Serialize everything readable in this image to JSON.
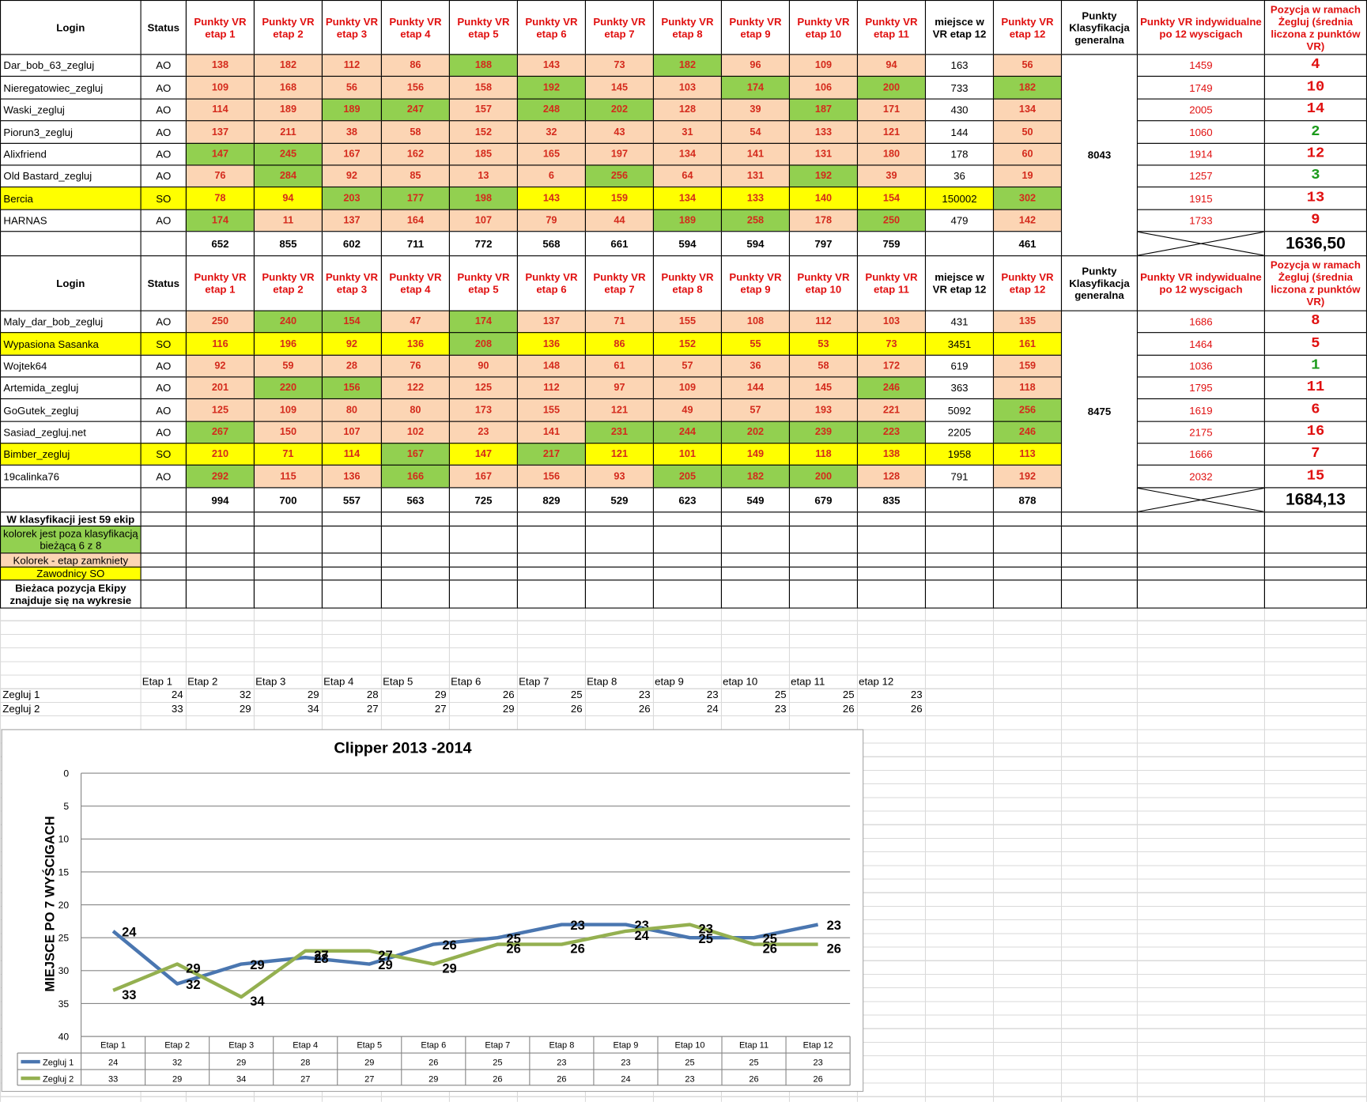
{
  "table1": {
    "headers": [
      "Login",
      "Status",
      "Punkty VR etap 1",
      "Punkty VR etap 2",
      "Punkty VR etap 3",
      "Punkty VR etap 4",
      "Punkty VR etap 5",
      "Punkty VR etap 6",
      "Punkty VR etap 7",
      "Punkty VR etap 8",
      "Punkty VR etap 9",
      "Punkty VR etap 10",
      "Punkty VR etap 11",
      "miejsce w VR etap 12",
      "Punkty VR etap 12",
      "Punkty Klasyfikacja generalna",
      "Punkty VR indywidualne po 12 wyscigach",
      "Pozycja w ramach Żegluj (średnia liczona z punktów VR)"
    ],
    "rows": [
      {
        "login": "Dar_bob_63_zegluj",
        "status": "AO",
        "points": [
          138,
          182,
          112,
          86,
          188,
          143,
          73,
          182,
          96,
          109,
          94
        ],
        "place": 163,
        "points12": 56,
        "individual": 1459,
        "position": 4,
        "row_fill": "#ffffff",
        "fills": [
          "#fcd5b4",
          "#fcd5b4",
          "#fcd5b4",
          "#fcd5b4",
          "#92d050",
          "#fcd5b4",
          "#fcd5b4",
          "#92d050",
          "#fcd5b4",
          "#fcd5b4",
          "#fcd5b4",
          "#fcd5b4"
        ],
        "position_color": "#e01010"
      },
      {
        "login": "Nieregatowiec_zegluj",
        "status": "AO",
        "points": [
          109,
          168,
          56,
          156,
          158,
          192,
          145,
          103,
          174,
          106,
          200
        ],
        "place": 733,
        "points12": 182,
        "individual": 1749,
        "position": 10,
        "row_fill": "#ffffff",
        "fills": [
          "#fcd5b4",
          "#fcd5b4",
          "#fcd5b4",
          "#fcd5b4",
          "#fcd5b4",
          "#92d050",
          "#fcd5b4",
          "#fcd5b4",
          "#92d050",
          "#fcd5b4",
          "#92d050",
          "#92d050"
        ],
        "position_color": "#e01010"
      },
      {
        "login": "Waski_zegluj",
        "status": "AO",
        "points": [
          114,
          189,
          189,
          247,
          157,
          248,
          202,
          128,
          39,
          187,
          171
        ],
        "place": 430,
        "points12": 134,
        "individual": 2005,
        "position": 14,
        "row_fill": "#ffffff",
        "fills": [
          "#fcd5b4",
          "#fcd5b4",
          "#92d050",
          "#92d050",
          "#fcd5b4",
          "#92d050",
          "#92d050",
          "#fcd5b4",
          "#fcd5b4",
          "#92d050",
          "#fcd5b4",
          "#fcd5b4"
        ],
        "position_color": "#e01010"
      },
      {
        "login": "Piorun3_zegluj",
        "status": "AO",
        "points": [
          137,
          211,
          38,
          58,
          152,
          32,
          43,
          31,
          54,
          133,
          121
        ],
        "place": 144,
        "points12": 50,
        "individual": 1060,
        "position": 2,
        "row_fill": "#ffffff",
        "fills": [
          "#fcd5b4",
          "#fcd5b4",
          "#fcd5b4",
          "#fcd5b4",
          "#fcd5b4",
          "#fcd5b4",
          "#fcd5b4",
          "#fcd5b4",
          "#fcd5b4",
          "#fcd5b4",
          "#fcd5b4",
          "#fcd5b4"
        ],
        "position_color": "#1a9a1a"
      },
      {
        "login": "Alixfriend",
        "status": "AO",
        "points": [
          147,
          245,
          167,
          162,
          185,
          165,
          197,
          134,
          141,
          131,
          180
        ],
        "place": 178,
        "points12": 60,
        "individual": 1914,
        "position": 12,
        "row_fill": "#ffffff",
        "fills": [
          "#92d050",
          "#92d050",
          "#fcd5b4",
          "#fcd5b4",
          "#fcd5b4",
          "#fcd5b4",
          "#fcd5b4",
          "#fcd5b4",
          "#fcd5b4",
          "#fcd5b4",
          "#fcd5b4",
          "#fcd5b4"
        ],
        "position_color": "#e01010"
      },
      {
        "login": "Old Bastard_zegluj",
        "status": "AO",
        "points": [
          76,
          284,
          92,
          85,
          13,
          6,
          256,
          64,
          131,
          192,
          39
        ],
        "place": 36,
        "points12": 19,
        "individual": 1257,
        "position": 3,
        "row_fill": "#ffffff",
        "fills": [
          "#fcd5b4",
          "#92d050",
          "#fcd5b4",
          "#fcd5b4",
          "#fcd5b4",
          "#fcd5b4",
          "#92d050",
          "#fcd5b4",
          "#fcd5b4",
          "#92d050",
          "#fcd5b4",
          "#fcd5b4"
        ],
        "position_color": "#1a9a1a"
      },
      {
        "login": "Bercia",
        "status": "SO",
        "points": [
          78,
          94,
          203,
          177,
          198,
          143,
          159,
          134,
          133,
          140,
          154
        ],
        "place": 150002,
        "points12": 302,
        "individual": 1915,
        "position": 13,
        "row_fill": "#ffff00",
        "fills": [
          "#ffff00",
          "#ffff00",
          "#92d050",
          "#92d050",
          "#92d050",
          "#ffff00",
          "#ffff00",
          "#ffff00",
          "#ffff00",
          "#ffff00",
          "#ffff00",
          "#92d050"
        ],
        "position_color": "#e01010"
      },
      {
        "login": "HARNAS",
        "status": "AO",
        "points": [
          174,
          11,
          137,
          164,
          107,
          79,
          44,
          189,
          258,
          178,
          250
        ],
        "place": 479,
        "points12": 142,
        "individual": 1733,
        "position": 9,
        "row_fill": "#ffffff",
        "fills": [
          "#92d050",
          "#fcd5b4",
          "#fcd5b4",
          "#fcd5b4",
          "#fcd5b4",
          "#fcd5b4",
          "#fcd5b4",
          "#92d050",
          "#92d050",
          "#fcd5b4",
          "#92d050",
          "#fcd5b4"
        ],
        "position_color": "#e01010"
      }
    ],
    "totals": [
      652,
      855,
      602,
      711,
      772,
      568,
      661,
      594,
      594,
      797,
      759
    ],
    "totals_points12": 461,
    "klasyfikacja": 8043,
    "average": "1636,50"
  },
  "table2": {
    "headers": [
      "Login",
      "Status",
      "Punkty VR etap 1",
      "Punkty VR etap 2",
      "Punkty VR etap 3",
      "Punkty VR etap 4",
      "Punkty VR etap 5",
      "Punkty VR etap 6",
      "Punkty VR etap 7",
      "Punkty VR etap 8",
      "Punkty VR etap 9",
      "Punkty VR etap 10",
      "Punkty VR etap 11",
      "miejsce w VR etap 12",
      "Punkty VR etap 12",
      "Punkty Klasyfikacja generalna",
      "Punkty VR indywidualne po 12 wyscigach",
      "Pozycja w ramach Żegluj (średnia liczona z punktów VR)"
    ],
    "rows": [
      {
        "login": "Maly_dar_bob_zegluj",
        "status": "AO",
        "points": [
          250,
          240,
          154,
          47,
          174,
          137,
          71,
          155,
          108,
          112,
          103
        ],
        "place": 431,
        "points12": 135,
        "individual": 1686,
        "position": 8,
        "row_fill": "#ffffff",
        "fills": [
          "#fcd5b4",
          "#92d050",
          "#92d050",
          "#fcd5b4",
          "#92d050",
          "#fcd5b4",
          "#fcd5b4",
          "#fcd5b4",
          "#fcd5b4",
          "#fcd5b4",
          "#fcd5b4",
          "#fcd5b4"
        ],
        "position_color": "#e01010"
      },
      {
        "login": "Wypasiona Sasanka",
        "status": "SO",
        "points": [
          116,
          196,
          92,
          136,
          208,
          136,
          86,
          152,
          55,
          53,
          73
        ],
        "place": 3451,
        "points12": 161,
        "individual": 1464,
        "position": 5,
        "row_fill": "#ffff00",
        "fills": [
          "#ffff00",
          "#ffff00",
          "#ffff00",
          "#ffff00",
          "#92d050",
          "#ffff00",
          "#ffff00",
          "#ffff00",
          "#ffff00",
          "#ffff00",
          "#ffff00",
          "#ffff00"
        ],
        "position_color": "#e01010"
      },
      {
        "login": "Wojtek64",
        "status": "AO",
        "points": [
          92,
          59,
          28,
          76,
          90,
          148,
          61,
          57,
          36,
          58,
          172
        ],
        "place": 619,
        "points12": 159,
        "individual": 1036,
        "position": 1,
        "row_fill": "#ffffff",
        "fills": [
          "#fcd5b4",
          "#fcd5b4",
          "#fcd5b4",
          "#fcd5b4",
          "#fcd5b4",
          "#fcd5b4",
          "#fcd5b4",
          "#fcd5b4",
          "#fcd5b4",
          "#fcd5b4",
          "#fcd5b4",
          "#fcd5b4"
        ],
        "position_color": "#1a9a1a"
      },
      {
        "login": "Artemida_zegluj",
        "status": "AO",
        "points": [
          201,
          220,
          156,
          122,
          125,
          112,
          97,
          109,
          144,
          145,
          246
        ],
        "place": 363,
        "points12": 118,
        "individual": 1795,
        "position": 11,
        "row_fill": "#ffffff",
        "fills": [
          "#fcd5b4",
          "#92d050",
          "#92d050",
          "#fcd5b4",
          "#fcd5b4",
          "#fcd5b4",
          "#fcd5b4",
          "#fcd5b4",
          "#fcd5b4",
          "#fcd5b4",
          "#92d050",
          "#fcd5b4"
        ],
        "position_color": "#e01010"
      },
      {
        "login": "GoGutek_zegluj",
        "status": "AO",
        "points": [
          125,
          109,
          80,
          80,
          173,
          155,
          121,
          49,
          57,
          193,
          221
        ],
        "place": 5092,
        "points12": 256,
        "individual": 1619,
        "position": 6,
        "row_fill": "#ffffff",
        "fills": [
          "#fcd5b4",
          "#fcd5b4",
          "#fcd5b4",
          "#fcd5b4",
          "#fcd5b4",
          "#fcd5b4",
          "#fcd5b4",
          "#fcd5b4",
          "#fcd5b4",
          "#fcd5b4",
          "#fcd5b4",
          "#92d050"
        ],
        "position_color": "#e01010"
      },
      {
        "login": "Sasiad_zegluj.net",
        "status": "AO",
        "points": [
          267,
          150,
          107,
          102,
          23,
          141,
          231,
          244,
          202,
          239,
          223
        ],
        "place": 2205,
        "points12": 246,
        "individual": 2175,
        "position": 16,
        "row_fill": "#ffffff",
        "fills": [
          "#92d050",
          "#fcd5b4",
          "#fcd5b4",
          "#fcd5b4",
          "#fcd5b4",
          "#fcd5b4",
          "#92d050",
          "#92d050",
          "#92d050",
          "#92d050",
          "#92d050",
          "#92d050"
        ],
        "position_color": "#e01010"
      },
      {
        "login": "Bimber_zegluj",
        "status": "SO",
        "points": [
          210,
          71,
          114,
          167,
          147,
          217,
          121,
          101,
          149,
          118,
          138
        ],
        "place": 1958,
        "points12": 113,
        "individual": 1666,
        "position": 7,
        "row_fill": "#ffff00",
        "fills": [
          "#ffff00",
          "#ffff00",
          "#ffff00",
          "#92d050",
          "#ffff00",
          "#92d050",
          "#ffff00",
          "#ffff00",
          "#ffff00",
          "#ffff00",
          "#ffff00",
          "#ffff00"
        ],
        "position_color": "#e01010"
      },
      {
        "login": "19calinka76",
        "status": "AO",
        "points": [
          292,
          115,
          136,
          166,
          167,
          156,
          93,
          205,
          182,
          200,
          128
        ],
        "place": 791,
        "points12": 192,
        "individual": 2032,
        "position": 15,
        "row_fill": "#ffffff",
        "fills": [
          "#92d050",
          "#fcd5b4",
          "#fcd5b4",
          "#92d050",
          "#fcd5b4",
          "#fcd5b4",
          "#fcd5b4",
          "#92d050",
          "#92d050",
          "#92d050",
          "#fcd5b4",
          "#fcd5b4"
        ],
        "position_color": "#e01010"
      }
    ],
    "totals": [
      994,
      700,
      557,
      563,
      725,
      829,
      529,
      623,
      549,
      679,
      835
    ],
    "totals_points12": 878,
    "klasyfikacja": 8475,
    "average": "1684,13"
  },
  "legend": [
    {
      "text": "W klasyfikacji jest 59 ekip",
      "fill": "#ffffff"
    },
    {
      "text": "kolorek jest  poza klasyfikacją bieżącą 6 z 8",
      "fill": "#92d050"
    },
    {
      "text": "Kolorek - etap zamkniety",
      "fill": "#fcd5b4"
    },
    {
      "text": "Zawodnicy SO",
      "fill": "#ffff00"
    },
    {
      "text": "Bieżaca pozycja Ekipy znajduje się na wykresie",
      "fill": "#ffffff"
    }
  ],
  "grid_header": [
    "Etap 1",
    "Etap 2",
    "Etap 3",
    "Etap 4",
    "Etap 5",
    "Etap 6",
    "Etap 7",
    "Etap 8",
    "etap 9",
    "etap 10",
    "etap 11",
    "etap 12"
  ],
  "chart_data": {
    "type": "line",
    "title": "Clipper 2013 -2014",
    "y_label": "MIEJSCE PO 7 WYŚCIGACH",
    "categories": [
      "Etap 1",
      "Etap 2",
      "Etap 3",
      "Etap 4",
      "Etap 5",
      "Etap 6",
      "Etap 7",
      "Etap 8",
      "Etap 9",
      "Etap 10",
      "Etap 11",
      "Etap 12"
    ],
    "series": [
      {
        "name": "Zegluj 1",
        "color": "#4a76b0",
        "values": [
          24,
          32,
          29,
          28,
          29,
          26,
          25,
          23,
          23,
          25,
          25,
          23
        ]
      },
      {
        "name": "Zegluj 2",
        "color": "#94b050",
        "values": [
          33,
          29,
          34,
          27,
          27,
          29,
          26,
          26,
          24,
          23,
          26,
          26
        ]
      }
    ],
    "ylim": [
      0,
      40
    ],
    "yticks": [
      0,
      5,
      10,
      15,
      20,
      25,
      30,
      35,
      40
    ],
    "y_reversed": true,
    "grid": true,
    "data_labels": true
  }
}
